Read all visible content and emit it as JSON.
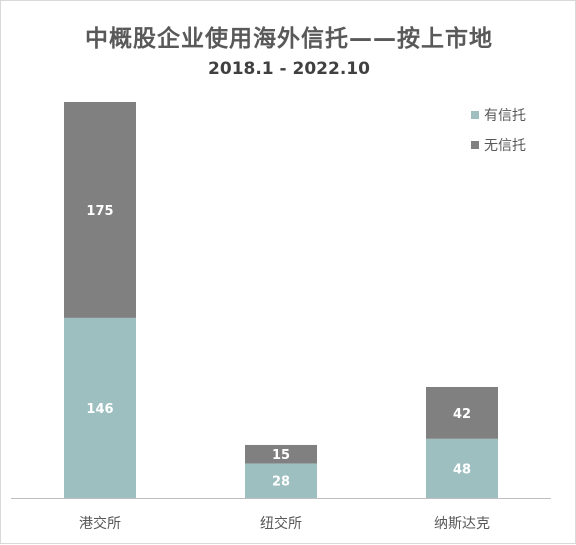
{
  "chart_data": {
    "type": "bar",
    "stacked": true,
    "title": "中概股企业使用海外信托——按上市地",
    "subtitle": "2018.1 - 2022.10",
    "categories": [
      "港交所",
      "纽交所",
      "纳斯达克"
    ],
    "series": [
      {
        "name": "有信托",
        "values": [
          146,
          28,
          48
        ],
        "color": "#9ebfc0"
      },
      {
        "name": "无信托",
        "values": [
          175,
          15,
          42
        ],
        "color": "#808080"
      }
    ],
    "legend_order": [
      0,
      1
    ],
    "ylim": [
      0,
      321
    ],
    "grid": false,
    "legend": "top-right",
    "data_labels": true,
    "label_color": "#ffffff",
    "axis_color": "#bfbfbf",
    "tick_label_color": "#595959"
  }
}
